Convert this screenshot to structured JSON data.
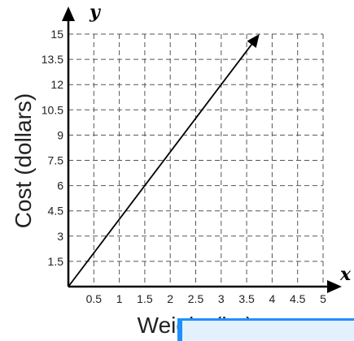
{
  "chart_data": {
    "type": "line",
    "xlabel": "Weight (kg)",
    "ylabel": "Cost (dollars)",
    "x_axis_letter": "x",
    "y_axis_letter": "y",
    "xlim": [
      0,
      5
    ],
    "ylim": [
      0,
      15
    ],
    "x_ticks": [
      "0.5",
      "1",
      "1.5",
      "2",
      "2.5",
      "3",
      "3.5",
      "4",
      "4.5",
      "5"
    ],
    "y_ticks": [
      "1.5",
      "3",
      "4.5",
      "6",
      "7.5",
      "9",
      "10.5",
      "12",
      "13.5",
      "15"
    ],
    "grid": true,
    "series": [
      {
        "x": [
          0,
          3.75
        ],
        "y": [
          0,
          15
        ],
        "arrow": true
      }
    ],
    "colors": {
      "line": "#000000",
      "grid": "#555555",
      "axis": "#000000"
    }
  }
}
